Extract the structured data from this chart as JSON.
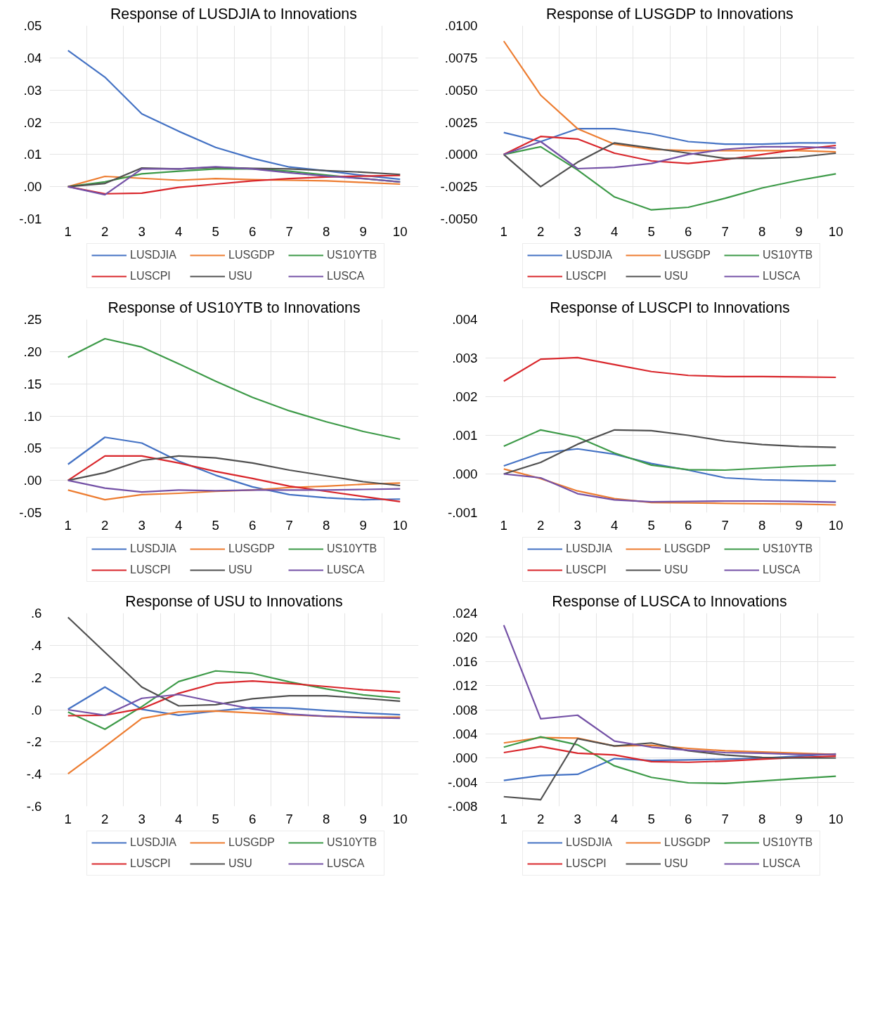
{
  "chart_data": [
    {
      "type": "line",
      "title": "Response of LUSDJIA to Innovations",
      "categories": [
        "1",
        "2",
        "3",
        "4",
        "5",
        "6",
        "7",
        "8",
        "9",
        "10"
      ],
      "ylim": [
        -0.01,
        0.05
      ],
      "yticks": [
        {
          "value": -0.01,
          "label": "-.01"
        },
        {
          "value": 0,
          "label": ".00"
        },
        {
          "value": 0.01,
          "label": ".01"
        },
        {
          "value": 0.02,
          "label": ".02"
        },
        {
          "value": 0.03,
          "label": ".03"
        },
        {
          "value": 0.04,
          "label": ".04"
        },
        {
          "value": 0.05,
          "label": ".05"
        }
      ],
      "grid": true,
      "legend": "bottom",
      "series": [
        {
          "name": "LUSDJIA",
          "color": "#4472c4",
          "values": [
            0.0423,
            0.034,
            0.0226,
            0.0172,
            0.0122,
            0.0088,
            0.0061,
            0.0049,
            0.0035,
            0.0023
          ]
        },
        {
          "name": "LUSGDP",
          "color": "#ed7d31",
          "values": [
            0,
            0.0032,
            0.0026,
            0.002,
            0.0025,
            0.0022,
            0.002,
            0.0018,
            0.0013,
            0.0008
          ]
        },
        {
          "name": "US10YTB",
          "color": "#3d9a48",
          "values": [
            0,
            0.0015,
            0.004,
            0.0048,
            0.0055,
            0.0055,
            0.0048,
            0.0036,
            0.0025,
            0.0015
          ]
        },
        {
          "name": "LUSCPI",
          "color": "#d9262b",
          "values": [
            0,
            -0.0022,
            -0.002,
            -0.0002,
            0.0008,
            0.0018,
            0.0025,
            0.003,
            0.0033,
            0.0035
          ]
        },
        {
          "name": "USU",
          "color": "#505050",
          "values": [
            0,
            0.001,
            0.0058,
            0.0055,
            0.006,
            0.0057,
            0.0055,
            0.005,
            0.0045,
            0.0038
          ]
        },
        {
          "name": "LUSCA",
          "color": "#7451a6",
          "values": [
            0,
            -0.0025,
            0.0055,
            0.0055,
            0.0062,
            0.0055,
            0.0043,
            0.0033,
            0.0025,
            0.0015
          ]
        }
      ]
    },
    {
      "type": "line",
      "title": "Response of LUSGDP to Innovations",
      "categories": [
        "1",
        "2",
        "3",
        "4",
        "5",
        "6",
        "7",
        "8",
        "9",
        "10"
      ],
      "ylim": [
        -0.005,
        0.01
      ],
      "yticks": [
        {
          "value": -0.005,
          "label": "-.0050"
        },
        {
          "value": -0.0025,
          "label": "-.0025"
        },
        {
          "value": 0,
          "label": ".0000"
        },
        {
          "value": 0.0025,
          "label": ".0025"
        },
        {
          "value": 0.005,
          "label": ".0050"
        },
        {
          "value": 0.0075,
          "label": ".0075"
        },
        {
          "value": 0.01,
          "label": ".0100"
        }
      ],
      "grid": true,
      "legend": "bottom",
      "series": [
        {
          "name": "LUSDJIA",
          "color": "#4472c4",
          "values": [
            0.0017,
            0.001,
            0.002,
            0.002,
            0.0016,
            0.001,
            0.0008,
            0.0008,
            0.0009,
            0.0009
          ]
        },
        {
          "name": "LUSGDP",
          "color": "#ed7d31",
          "values": [
            0.0088,
            0.0046,
            0.002,
            0.0008,
            0.0004,
            0.0003,
            0.0003,
            0.0003,
            0.0003,
            0.0002
          ]
        },
        {
          "name": "US10YTB",
          "color": "#3d9a48",
          "values": [
            0,
            0.0006,
            -0.0012,
            -0.0033,
            -0.0043,
            -0.0041,
            -0.0034,
            -0.0026,
            -0.002,
            -0.0015
          ]
        },
        {
          "name": "LUSCPI",
          "color": "#d9262b",
          "values": [
            0,
            0.0014,
            0.0012,
            0.0001,
            -0.0005,
            -0.0007,
            -0.0004,
            0,
            0.0004,
            0.0007
          ]
        },
        {
          "name": "USU",
          "color": "#505050",
          "values": [
            0,
            -0.0025,
            -0.0006,
            0.0009,
            0.0005,
            0.0001,
            -0.0003,
            -0.0003,
            -0.0002,
            0.0001
          ]
        },
        {
          "name": "LUSCA",
          "color": "#7451a6",
          "values": [
            0,
            0.001,
            -0.0011,
            -0.001,
            -0.0007,
            0,
            0.0004,
            0.0006,
            0.0006,
            0.0005
          ]
        }
      ]
    },
    {
      "type": "line",
      "title": "Response of US10YTB to Innovations",
      "categories": [
        "1",
        "2",
        "3",
        "4",
        "5",
        "6",
        "7",
        "8",
        "9",
        "10"
      ],
      "ylim": [
        -0.05,
        0.25
      ],
      "yticks": [
        {
          "value": -0.05,
          "label": "-.05"
        },
        {
          "value": 0,
          "label": ".00"
        },
        {
          "value": 0.05,
          "label": ".05"
        },
        {
          "value": 0.1,
          "label": ".10"
        },
        {
          "value": 0.15,
          "label": ".15"
        },
        {
          "value": 0.2,
          "label": ".20"
        },
        {
          "value": 0.25,
          "label": ".25"
        }
      ],
      "grid": true,
      "legend": "bottom",
      "series": [
        {
          "name": "LUSDJIA",
          "color": "#4472c4",
          "values": [
            0.025,
            0.067,
            0.058,
            0.03,
            0.008,
            -0.01,
            -0.022,
            -0.027,
            -0.03,
            -0.029
          ]
        },
        {
          "name": "LUSGDP",
          "color": "#ed7d31",
          "values": [
            -0.015,
            -0.03,
            -0.022,
            -0.02,
            -0.017,
            -0.015,
            -0.011,
            -0.009,
            -0.006,
            -0.004
          ]
        },
        {
          "name": "US10YTB",
          "color": "#3d9a48",
          "values": [
            0.191,
            0.22,
            0.207,
            0.181,
            0.154,
            0.129,
            0.108,
            0.091,
            0.076,
            0.064
          ]
        },
        {
          "name": "LUSCPI",
          "color": "#d9262b",
          "values": [
            0,
            0.038,
            0.038,
            0.027,
            0.014,
            0.003,
            -0.009,
            -0.017,
            -0.025,
            -0.033
          ]
        },
        {
          "name": "USU",
          "color": "#505050",
          "values": [
            0,
            0.012,
            0.031,
            0.038,
            0.035,
            0.027,
            0.016,
            0.007,
            -0.002,
            -0.008
          ]
        },
        {
          "name": "LUSCA",
          "color": "#7451a6",
          "values": [
            0,
            -0.012,
            -0.018,
            -0.015,
            -0.016,
            -0.015,
            -0.015,
            -0.015,
            -0.014,
            -0.013
          ]
        }
      ]
    },
    {
      "type": "line",
      "title": "Response of LUSCPI to Innovations",
      "categories": [
        "1",
        "2",
        "3",
        "4",
        "5",
        "6",
        "7",
        "8",
        "9",
        "10"
      ],
      "ylim": [
        -0.001,
        0.004
      ],
      "yticks": [
        {
          "value": -0.001,
          "label": "-.001"
        },
        {
          "value": 0,
          "label": ".000"
        },
        {
          "value": 0.001,
          "label": ".001"
        },
        {
          "value": 0.002,
          "label": ".002"
        },
        {
          "value": 0.003,
          "label": ".003"
        },
        {
          "value": 0.004,
          "label": ".004"
        }
      ],
      "grid": true,
      "legend": "bottom",
      "series": [
        {
          "name": "LUSDJIA",
          "color": "#4472c4",
          "values": [
            0.00021,
            0.00054,
            0.00065,
            0.00051,
            0.00027,
            0.0001,
            -0.0001,
            -0.00015,
            -0.00017,
            -0.00019
          ]
        },
        {
          "name": "LUSGDP",
          "color": "#ed7d31",
          "values": [
            0.00013,
            -0.00012,
            -0.00044,
            -0.00064,
            -0.00074,
            -0.00075,
            -0.00076,
            -0.00077,
            -0.00078,
            -0.0008
          ]
        },
        {
          "name": "US10YTB",
          "color": "#3d9a48",
          "values": [
            0.00072,
            0.00114,
            0.00095,
            0.00054,
            0.00023,
            0.00011,
            0.0001,
            0.00015,
            0.0002,
            0.00023
          ]
        },
        {
          "name": "LUSCPI",
          "color": "#d9262b",
          "values": [
            0.0024,
            0.00297,
            0.00301,
            0.00283,
            0.00265,
            0.00255,
            0.00252,
            0.00252,
            0.00251,
            0.0025
          ]
        },
        {
          "name": "USU",
          "color": "#505050",
          "values": [
            0,
            0.0003,
            0.00077,
            0.00114,
            0.00112,
            0.001,
            0.00085,
            0.00076,
            0.00071,
            0.00069
          ]
        },
        {
          "name": "LUSCA",
          "color": "#7451a6",
          "values": [
            0,
            -0.0001,
            -0.00051,
            -0.00067,
            -0.00072,
            -0.00071,
            -0.0007,
            -0.0007,
            -0.00071,
            -0.00073
          ]
        }
      ]
    },
    {
      "type": "line",
      "title": "Response of USU to Innovations",
      "categories": [
        "1",
        "2",
        "3",
        "4",
        "5",
        "6",
        "7",
        "8",
        "9",
        "10"
      ],
      "ylim": [
        -0.6,
        0.6
      ],
      "yticks": [
        {
          "value": -0.6,
          "label": "-.6"
        },
        {
          "value": -0.4,
          "label": "-.4"
        },
        {
          "value": -0.2,
          "label": "-.2"
        },
        {
          "value": 0,
          "label": ".0"
        },
        {
          "value": 0.2,
          "label": ".2"
        },
        {
          "value": 0.4,
          "label": ".4"
        },
        {
          "value": 0.6,
          "label": ".6"
        }
      ],
      "grid": true,
      "legend": "bottom",
      "series": [
        {
          "name": "LUSDJIA",
          "color": "#4472c4",
          "values": [
            0.003,
            0.141,
            0.003,
            -0.034,
            -0.008,
            0.014,
            0.01,
            -0.005,
            -0.02,
            -0.031
          ]
        },
        {
          "name": "LUSGDP",
          "color": "#ed7d31",
          "values": [
            -0.398,
            -0.229,
            -0.054,
            -0.014,
            -0.008,
            -0.02,
            -0.031,
            -0.041,
            -0.046,
            -0.046
          ]
        },
        {
          "name": "US10YTB",
          "color": "#3d9a48",
          "values": [
            -0.014,
            -0.121,
            0.019,
            0.175,
            0.241,
            0.226,
            0.173,
            0.129,
            0.092,
            0.071
          ]
        },
        {
          "name": "LUSCPI",
          "color": "#d9262b",
          "values": [
            -0.037,
            -0.034,
            0.007,
            0.102,
            0.165,
            0.178,
            0.163,
            0.144,
            0.124,
            0.11
          ]
        },
        {
          "name": "USU",
          "color": "#505050",
          "values": [
            0.574,
            0.357,
            0.141,
            0.024,
            0.031,
            0.068,
            0.087,
            0.087,
            0.071,
            0.053
          ]
        },
        {
          "name": "LUSCA",
          "color": "#7451a6",
          "values": [
            0,
            -0.034,
            0.071,
            0.095,
            0.048,
            0.005,
            -0.027,
            -0.041,
            -0.049,
            -0.053
          ]
        }
      ]
    },
    {
      "type": "line",
      "title": "Response of LUSCA to Innovations",
      "categories": [
        "1",
        "2",
        "3",
        "4",
        "5",
        "6",
        "7",
        "8",
        "9",
        "10"
      ],
      "ylim": [
        -0.008,
        0.024
      ],
      "yticks": [
        {
          "value": -0.008,
          "label": "-.008"
        },
        {
          "value": -0.004,
          "label": "-.004"
        },
        {
          "value": 0,
          "label": ".000"
        },
        {
          "value": 0.004,
          "label": ".004"
        },
        {
          "value": 0.008,
          "label": ".008"
        },
        {
          "value": 0.012,
          "label": ".012"
        },
        {
          "value": 0.016,
          "label": ".016"
        },
        {
          "value": 0.02,
          "label": ".020"
        },
        {
          "value": 0.024,
          "label": ".024"
        }
      ],
      "grid": true,
      "legend": "bottom",
      "series": [
        {
          "name": "LUSDJIA",
          "color": "#4472c4",
          "values": [
            -0.0037,
            -0.0029,
            -0.0027,
            -0.0001,
            -0.0004,
            -0.0003,
            -0.0002,
            0,
            0.0003,
            0.0007
          ]
        },
        {
          "name": "LUSGDP",
          "color": "#ed7d31",
          "values": [
            0.0025,
            0.0034,
            0.0033,
            0.002,
            0.0021,
            0.0016,
            0.0012,
            0.001,
            0.0008,
            0.0006
          ]
        },
        {
          "name": "US10YTB",
          "color": "#3d9a48",
          "values": [
            0.0018,
            0.0035,
            0.0022,
            -0.0013,
            -0.0032,
            -0.0041,
            -0.0042,
            -0.0038,
            -0.0034,
            -0.003
          ]
        },
        {
          "name": "LUSCPI",
          "color": "#d9262b",
          "values": [
            0.0009,
            0.0019,
            0.0008,
            0.0005,
            -0.0006,
            -0.0007,
            -0.0005,
            -0.0002,
            0.0001,
            0.0003
          ]
        },
        {
          "name": "USU",
          "color": "#505050",
          "values": [
            -0.0064,
            -0.0069,
            0.0032,
            0.002,
            0.0025,
            0.0012,
            0.0005,
            0.0001,
            0,
            0
          ]
        },
        {
          "name": "LUSCA",
          "color": "#7451a6",
          "values": [
            0.022,
            0.0065,
            0.0071,
            0.0028,
            0.0018,
            0.0013,
            0.0009,
            0.0008,
            0.0006,
            0.0006
          ]
        }
      ]
    }
  ]
}
